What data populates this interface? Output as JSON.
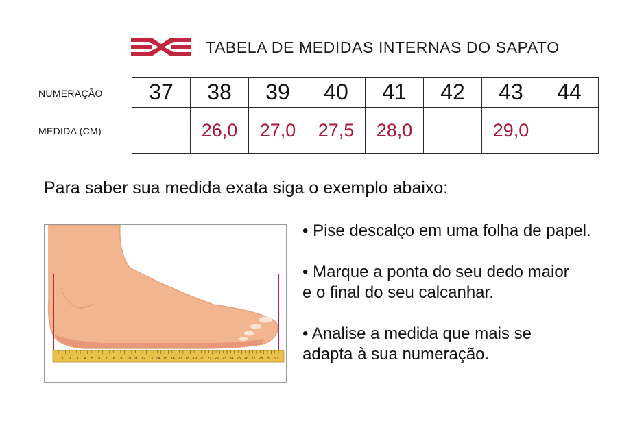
{
  "title": "TABELA DE MEDIDAS INTERNAS DO SAPATO",
  "row_labels": {
    "numeracao": "NUMERAÇÃO",
    "medida": "MEDIDA (CM)"
  },
  "sizes": [
    "37",
    "38",
    "39",
    "40",
    "41",
    "42",
    "43",
    "44"
  ],
  "measures": [
    "",
    "26,0",
    "27,0",
    "27,5",
    "28,0",
    "",
    "29,0",
    ""
  ],
  "instruction": "Para saber sua medida exata siga o exemplo abaixo:",
  "steps": [
    {
      "line1": "• Pise descalço em uma folha de papel.",
      "line2": ""
    },
    {
      "line1": "• Marque a ponta do seu dedo maior",
      "line2": "e o final do seu calcanhar."
    },
    {
      "line1": "• Analise a medida que mais se",
      "line2": "adapta à sua numeração."
    }
  ],
  "ruler_numbers": [
    "1",
    "2",
    "3",
    "4",
    "5",
    "6",
    "7",
    "8",
    "9",
    "10",
    "11",
    "12",
    "13",
    "14",
    "15",
    "16",
    "17",
    "18",
    "19",
    "20",
    "21",
    "22",
    "23",
    "24",
    "25",
    "26",
    "27",
    "28",
    "29",
    "30"
  ],
  "colors": {
    "accent": "#a8193a",
    "skin": "#f1b58f",
    "ruler": "#e8c24a"
  }
}
